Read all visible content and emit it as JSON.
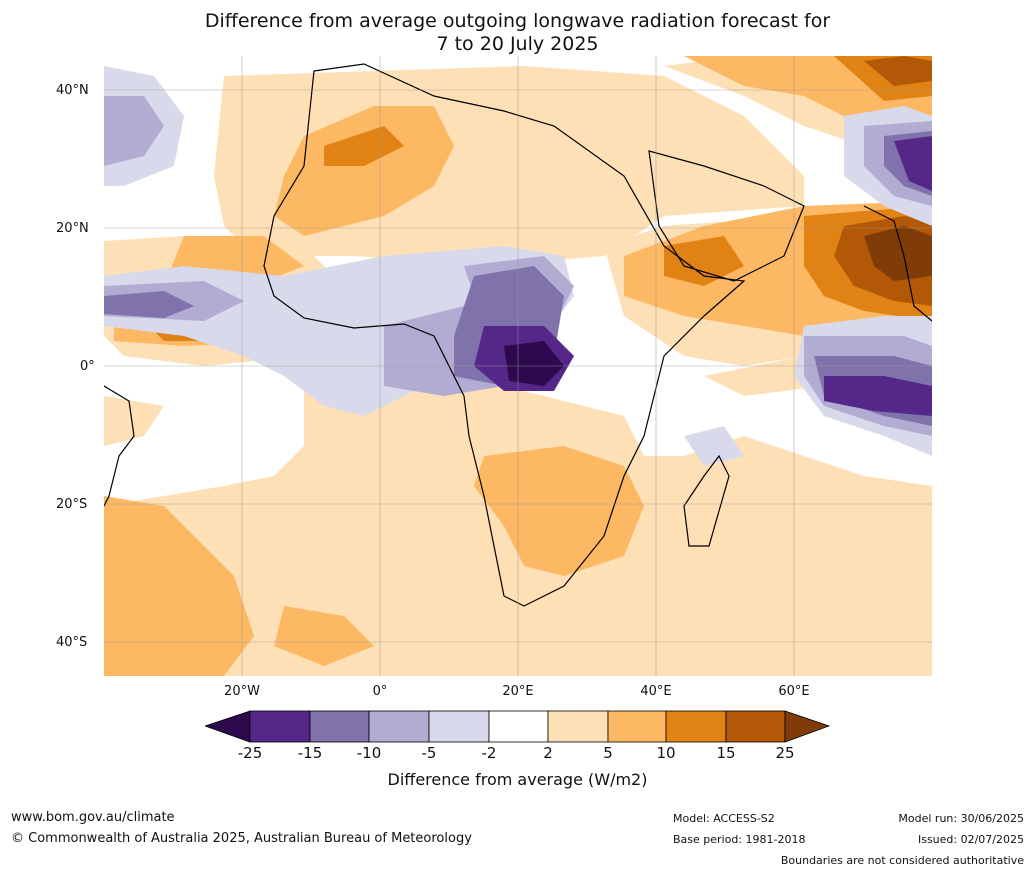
{
  "title_line1": "Difference from average outgoing longwave radiation forecast for",
  "title_line2": "7 to 20 July 2025",
  "lat_labels": [
    "40°N",
    "20°N",
    "0°",
    "20°S",
    "40°S"
  ],
  "lon_labels": [
    "20°W",
    "0°",
    "20°E",
    "40°E",
    "60°E"
  ],
  "colorbar": {
    "ticks": [
      "-25",
      "-15",
      "-10",
      "-5",
      "-2",
      "2",
      "5",
      "10",
      "15",
      "25"
    ],
    "colors": [
      "#2d0a4e",
      "#542788",
      "#8073ac",
      "#b2abd2",
      "#d8daeb",
      "#ffffff",
      "#fee0b6",
      "#fdb863",
      "#e08214",
      "#b35806",
      "#7f3b08"
    ],
    "label": "Difference from average (W/m2)"
  },
  "footer": {
    "website": "www.bom.gov.au/climate",
    "copyright": "© Commonwealth of Australia 2025, Australian Bureau of Meteorology",
    "model": "Model: ACCESS-S2",
    "base_period": "Base period: 1981-2018",
    "model_run": "Model run: 30/06/2025",
    "issued": "Issued: 02/07/2025",
    "disclaimer": "Boundaries are not considered authoritative"
  }
}
